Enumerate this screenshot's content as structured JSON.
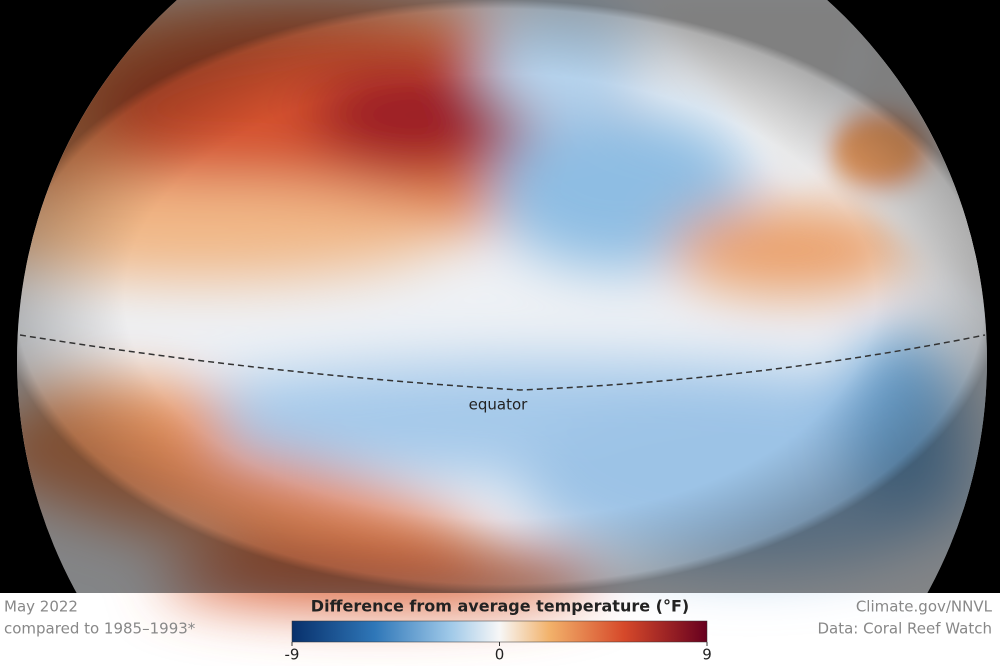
{
  "map": {
    "label": "equator"
  },
  "footer": {
    "date": "May 2022",
    "baseline": "compared to 1985–1993*",
    "credit": "Climate.gov/NNVL",
    "source": "Data: Coral Reef Watch"
  },
  "legend": {
    "title": "Difference from average temperature (°F)",
    "range": [
      -9,
      9
    ],
    "ticks": [
      -9,
      0,
      9
    ]
  }
}
